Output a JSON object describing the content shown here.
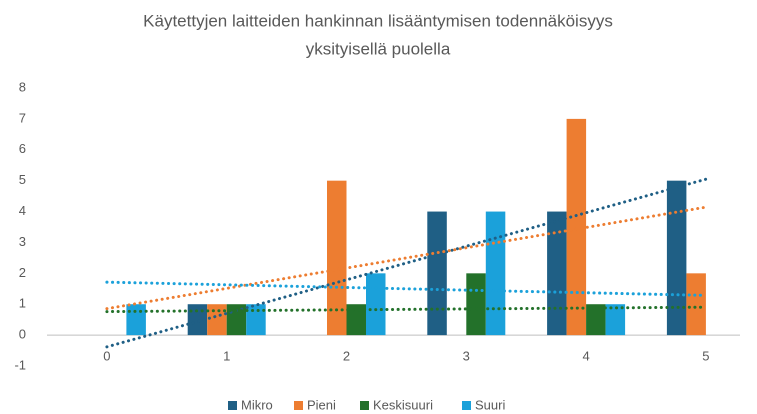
{
  "chart_data": {
    "type": "bar",
    "title": [
      "Käytettyjen laitteiden hankinnan lisääntymisen todennäköisyys",
      "yksityisellä puolella"
    ],
    "categories": [
      "0",
      "1",
      "2",
      "3",
      "4",
      "5"
    ],
    "series": [
      {
        "name": "Mikro",
        "color": "#1f5f85",
        "values": [
          0,
          1,
          0,
          4,
          4,
          5
        ]
      },
      {
        "name": "Pieni",
        "color": "#ed7d31",
        "values": [
          0,
          1,
          5,
          0,
          7,
          2
        ]
      },
      {
        "name": "Keskisuuri",
        "color": "#23712a",
        "values": [
          0,
          1,
          1,
          2,
          1,
          0
        ]
      },
      {
        "name": "Suuri",
        "color": "#1ba1da",
        "values": [
          1,
          1,
          2,
          4,
          1,
          0
        ]
      }
    ],
    "ylim": [
      -1,
      8
    ],
    "yticks": [
      -1,
      0,
      1,
      2,
      3,
      4,
      5,
      6,
      7,
      8
    ],
    "grid": false,
    "trendline": true,
    "legend": "bottom"
  }
}
